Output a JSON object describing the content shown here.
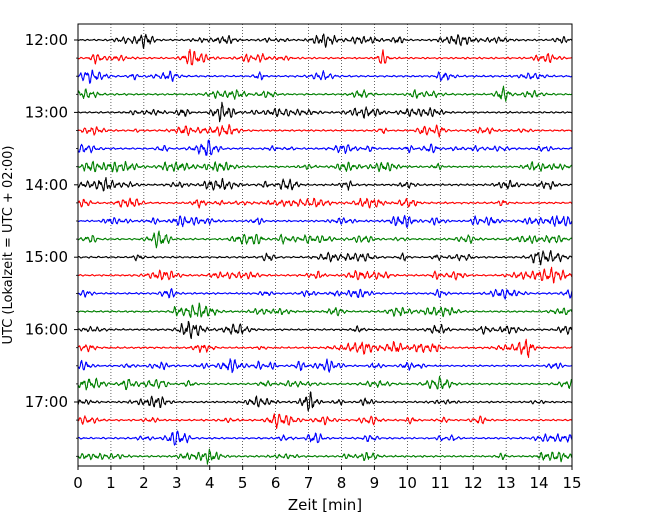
{
  "chart_data": {
    "type": "line",
    "title": "",
    "xlabel": "Zeit  [min]",
    "ylabel": "UTC (Lokalzeit = UTC + 02:00)",
    "xlim": [
      0,
      15
    ],
    "x_ticks": [
      "0",
      "1",
      "2",
      "3",
      "4",
      "5",
      "6",
      "7",
      "8",
      "9",
      "10",
      "11",
      "12",
      "13",
      "14",
      "15"
    ],
    "y_hour_labels": [
      "12:00",
      "13:00",
      "14:00",
      "15:00",
      "16:00",
      "17:00"
    ],
    "trace_interval_minutes": 15,
    "trace_count": 24,
    "trace_colors": [
      "#000000",
      "#ff0000",
      "#0000ff",
      "#008000"
    ],
    "grid": "vertical-dotted",
    "traces": [
      {
        "start": "12:00",
        "color": "#000000"
      },
      {
        "start": "12:15",
        "color": "#ff0000"
      },
      {
        "start": "12:30",
        "color": "#0000ff"
      },
      {
        "start": "12:45",
        "color": "#008000"
      },
      {
        "start": "13:00",
        "color": "#000000"
      },
      {
        "start": "13:15",
        "color": "#ff0000"
      },
      {
        "start": "13:30",
        "color": "#0000ff"
      },
      {
        "start": "13:45",
        "color": "#008000"
      },
      {
        "start": "14:00",
        "color": "#000000"
      },
      {
        "start": "14:15",
        "color": "#ff0000"
      },
      {
        "start": "14:30",
        "color": "#0000ff"
      },
      {
        "start": "14:45",
        "color": "#008000"
      },
      {
        "start": "15:00",
        "color": "#000000"
      },
      {
        "start": "15:15",
        "color": "#ff0000"
      },
      {
        "start": "15:30",
        "color": "#0000ff"
      },
      {
        "start": "15:45",
        "color": "#008000"
      },
      {
        "start": "16:00",
        "color": "#000000"
      },
      {
        "start": "16:15",
        "color": "#ff0000"
      },
      {
        "start": "16:30",
        "color": "#0000ff"
      },
      {
        "start": "16:45",
        "color": "#008000"
      },
      {
        "start": "17:00",
        "color": "#000000"
      },
      {
        "start": "17:15",
        "color": "#ff0000"
      },
      {
        "start": "17:30",
        "color": "#0000ff"
      },
      {
        "start": "17:45",
        "color": "#008000"
      }
    ]
  }
}
